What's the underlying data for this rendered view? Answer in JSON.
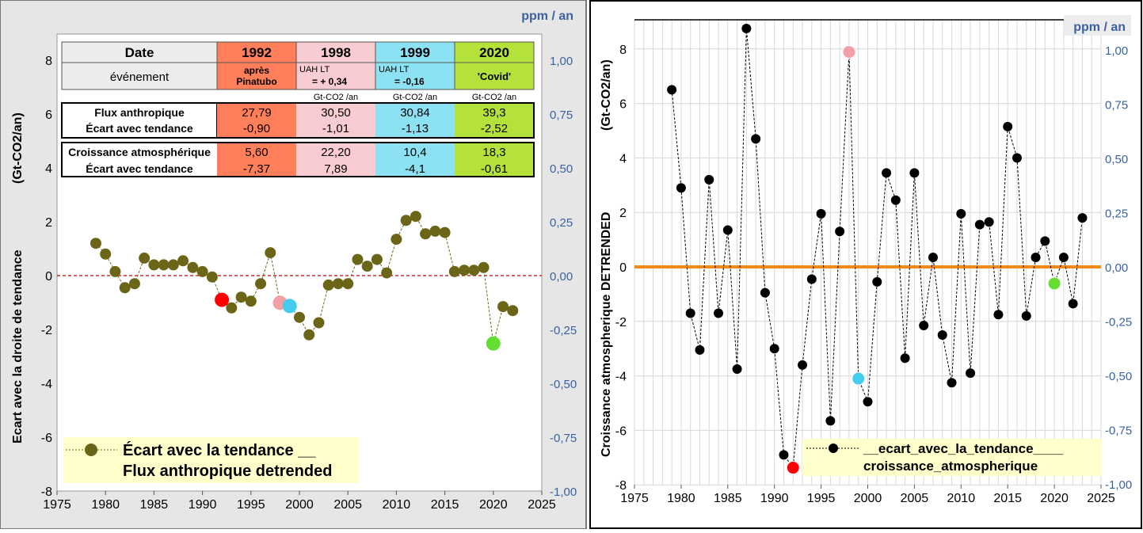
{
  "colors": {
    "left_bg": "#e6e6e6",
    "left_points": "#6b6517",
    "right_points": "#000000",
    "zero_line_left": "#cc0000",
    "zero_line_right": "#f28a1a",
    "axis_right_text": "#3a62a0",
    "pinatubo": "#ff0000",
    "y1998": "#f2a0a4",
    "y1999": "#44ccee",
    "covid": "#66dd33",
    "cell_1992": "#ff7f5a",
    "cell_1998": "#f8ccd0",
    "cell_1999": "#8ce2f2",
    "cell_2020": "#b5e23a",
    "legend_bg": "#ffffcc"
  },
  "left": {
    "y_title": "Ecart avec la droite de tendance",
    "y_unit": "(Gt-CO2/an)",
    "right_unit": "ppm / an",
    "legend_line1": "Écart avec la tendance __",
    "legend_line2": "Flux anthropique detrended",
    "table": {
      "header": [
        "Date",
        "1992",
        "1998",
        "1999",
        "2020"
      ],
      "event_label": "événement",
      "event_1992": "après\nPinatubo",
      "event_1998_a": "UAH LT",
      "event_1998_b": "= + 0,34",
      "event_1999_a": "UAH LT",
      "event_1999_b": "= -0,16",
      "event_2020": "'Covid'",
      "unit_label": "Gt-CO2 /an",
      "flux_label": "Flux anthropique",
      "ecart_label": "Écart avec tendance",
      "croissance_label": "Croissance atmosphérique",
      "flux_values": [
        "27,79",
        "30,50",
        "30,84",
        "39,3"
      ],
      "flux_ecarts": [
        "-0,90",
        "-1,01",
        "-1,13",
        "-2,52"
      ],
      "crois_values": [
        "5,60",
        "22,20",
        "10,4",
        "18,3"
      ],
      "crois_ecarts": [
        "-7,37",
        "7,89",
        "-4,1",
        "-0,61"
      ]
    }
  },
  "right": {
    "y_title": "Croissance atmospherique DETRENDED",
    "y_unit": "(Gt-CO2/an)",
    "right_unit": "ppm / an",
    "legend_line1": "__ecart_avec_la_tendance____",
    "legend_line2": "croissance_atmospherique"
  },
  "chart_data": [
    {
      "type": "scatter",
      "title": "",
      "xlabel": "",
      "ylabel": "Ecart avec la droite de tendance (Gt-CO2/an)",
      "y2label": "ppm / an",
      "xlim": [
        1975,
        2025
      ],
      "ylim": [
        -8,
        9
      ],
      "y2lim": [
        -1.0,
        1.0
      ],
      "x_ticks": [
        "1975",
        "1980",
        "1985",
        "1990",
        "1995",
        "2000",
        "2005",
        "2010",
        "2015",
        "2020",
        "2025"
      ],
      "y_ticks": [
        "8",
        "6",
        "4",
        "2",
        "0",
        "-2",
        "-4",
        "-6",
        "-8"
      ],
      "y2_ticks": [
        "1,00",
        "0,75",
        "0,50",
        "0,25",
        "0,00",
        "-0,25",
        "-0,50",
        "-0,75",
        "-1,00"
      ],
      "grid": false,
      "legend_position": "bottom-left",
      "series": [
        {
          "name": "Écart avec la tendance __ Flux anthropique detrended",
          "x": [
            1979,
            1980,
            1981,
            1982,
            1983,
            1984,
            1985,
            1986,
            1987,
            1988,
            1989,
            1990,
            1991,
            1992,
            1993,
            1994,
            1995,
            1996,
            1997,
            1998,
            1999,
            2000,
            2001,
            2002,
            2003,
            2004,
            2005,
            2006,
            2007,
            2008,
            2009,
            2010,
            2011,
            2012,
            2013,
            2014,
            2015,
            2016,
            2017,
            2018,
            2019,
            2020,
            2021,
            2022
          ],
          "y": [
            1.2,
            0.8,
            0.15,
            -0.45,
            -0.3,
            0.65,
            0.4,
            0.4,
            0.4,
            0.55,
            0.3,
            0.15,
            -0.05,
            -0.9,
            -1.2,
            -0.8,
            -0.95,
            -0.3,
            0.85,
            -1.01,
            -1.13,
            -1.55,
            -2.2,
            -1.75,
            -0.35,
            -0.3,
            -0.3,
            0.6,
            0.35,
            0.6,
            0.1,
            1.35,
            2.05,
            2.2,
            1.55,
            1.65,
            1.6,
            0.15,
            0.2,
            0.2,
            0.3,
            -2.52,
            -1.15,
            -1.3
          ]
        }
      ],
      "highlights": [
        {
          "x": 1992,
          "y": -0.9,
          "label": "1992"
        },
        {
          "x": 1998,
          "y": -1.01,
          "label": "1998"
        },
        {
          "x": 1999,
          "y": -1.13,
          "label": "1999"
        },
        {
          "x": 2020,
          "y": -2.52,
          "label": "2020"
        }
      ],
      "zero_line": 0
    },
    {
      "type": "line",
      "title": "",
      "xlabel": "",
      "ylabel": "Croissance atmospherique DETRENDED (Gt-CO2/an)",
      "y2label": "ppm / an",
      "xlim": [
        1975,
        2025
      ],
      "ylim": [
        -8,
        9
      ],
      "y2lim": [
        -1.0,
        1.0
      ],
      "x_ticks": [
        "1975",
        "1980",
        "1985",
        "1990",
        "1995",
        "2000",
        "2005",
        "2010",
        "2015",
        "2020",
        "2025"
      ],
      "y_ticks": [
        "8",
        "6",
        "4",
        "2",
        "0",
        "-2",
        "-4",
        "-6",
        "-8"
      ],
      "y2_ticks": [
        "1,00",
        "0,75",
        "0,50",
        "0,25",
        "0,00",
        "-0,25",
        "-0,50",
        "-0,75",
        "-1,00"
      ],
      "grid": true,
      "legend_position": "bottom-right",
      "series": [
        {
          "name": "__ecart_avec_la_tendance____ croissance_atmospherique",
          "x": [
            1979,
            1980,
            1981,
            1982,
            1983,
            1984,
            1985,
            1986,
            1987,
            1988,
            1989,
            1990,
            1991,
            1992,
            1993,
            1994,
            1995,
            1996,
            1997,
            1998,
            1999,
            2000,
            2001,
            2002,
            2003,
            2004,
            2005,
            2006,
            2007,
            2008,
            2009,
            2010,
            2011,
            2012,
            2013,
            2014,
            2015,
            2016,
            2017,
            2018,
            2019,
            2020,
            2021,
            2022,
            2023
          ],
          "y": [
            6.5,
            2.9,
            -1.7,
            -3.05,
            3.2,
            -1.7,
            1.35,
            -3.75,
            8.75,
            4.7,
            -0.95,
            -3.0,
            -6.9,
            -7.37,
            -3.6,
            -0.45,
            1.95,
            -5.65,
            1.3,
            7.89,
            -4.1,
            -4.95,
            -0.55,
            3.45,
            2.45,
            -3.35,
            3.45,
            -2.15,
            0.35,
            -2.5,
            -4.25,
            1.95,
            -3.9,
            1.55,
            1.65,
            -1.75,
            5.15,
            4.0,
            -1.8,
            0.35,
            0.95,
            -0.61,
            0.35,
            -1.35,
            1.8
          ]
        }
      ],
      "highlights": [
        {
          "x": 1992,
          "y": -7.37,
          "label": "1992"
        },
        {
          "x": 1998,
          "y": 7.89,
          "label": "1998"
        },
        {
          "x": 1999,
          "y": -4.1,
          "label": "1999"
        },
        {
          "x": 2020,
          "y": -0.61,
          "label": "2020"
        }
      ],
      "zero_line": 0
    }
  ]
}
